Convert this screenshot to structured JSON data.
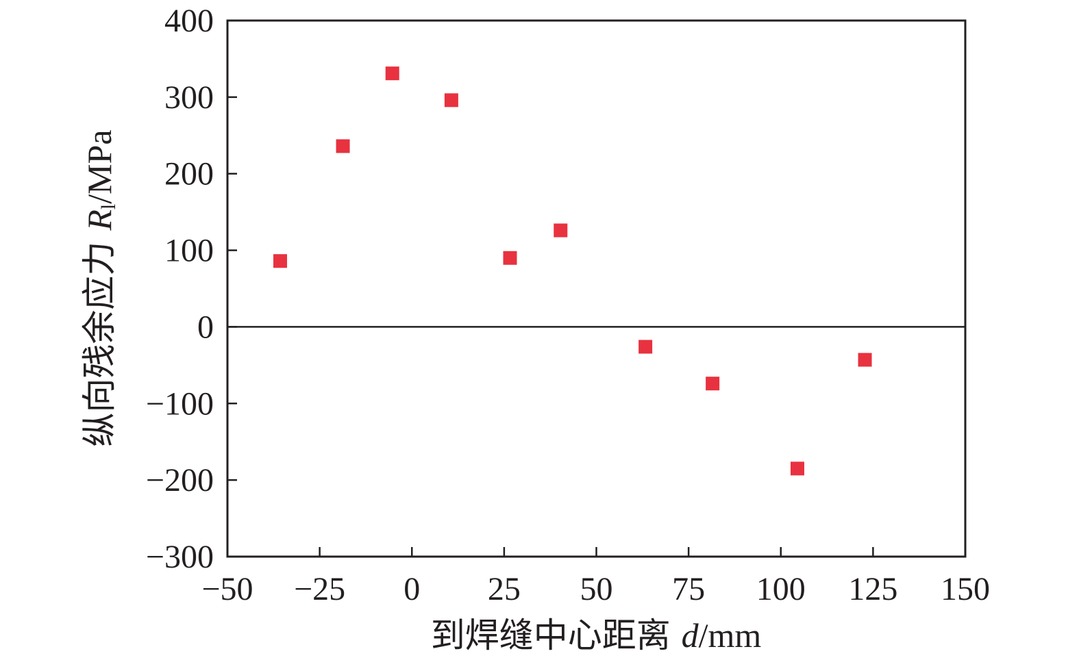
{
  "chart_data": {
    "type": "scatter",
    "xlabel": {
      "prefix": "到焊缝中心距离 ",
      "symbol": "d",
      "unit": "/mm"
    },
    "ylabel": {
      "prefix": "纵向残余应力 ",
      "symbol": "R",
      "subscript": "l",
      "unit": "/MPa"
    },
    "xlim": [
      -50,
      150
    ],
    "ylim": [
      -300,
      400
    ],
    "xticks": [
      "−50",
      "−25",
      "0",
      "25",
      "50",
      "75",
      "100",
      "125",
      "150"
    ],
    "yticks": [
      "−300",
      "−200",
      "−100",
      "0",
      "100",
      "200",
      "300",
      "400"
    ],
    "zero_line": true,
    "grid": false,
    "marker_color": "#e8323f",
    "series": [
      {
        "x": [
          -35.7,
          -18.7,
          -5.3,
          10.7,
          26.6,
          40.3,
          63.3,
          81.5,
          104.5,
          122.8
        ],
        "y": [
          86,
          236,
          331,
          296,
          90,
          126,
          -26,
          -74,
          -185,
          -43
        ]
      }
    ]
  }
}
